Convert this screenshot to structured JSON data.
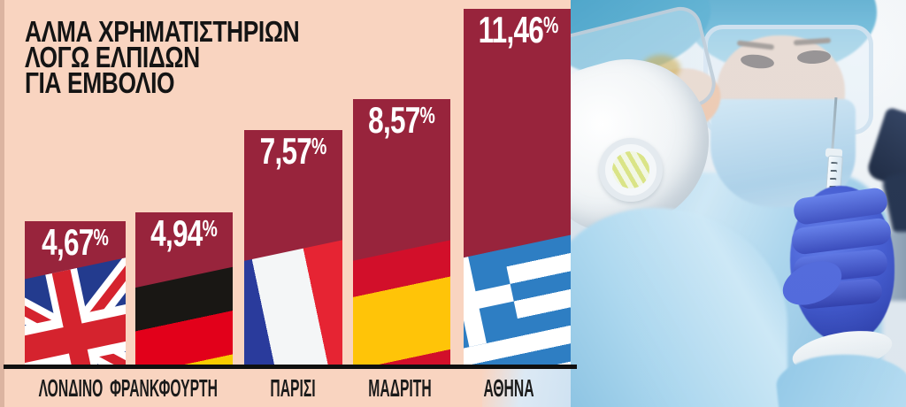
{
  "title": {
    "lines": [
      "ΑΛΜΑ ΧΡΗΜΑΤΙΣΤΗΡΙΩΝ",
      "ΛΟΓΩ ΕΛΠΙΔΩΝ",
      "ΓΙΑ ΕΜΒΟΛΙΟ"
    ]
  },
  "colors": {
    "background": "#f9d4c0",
    "bar": "#98243c",
    "value_text": "#ffffff",
    "title_text": "#141414",
    "axis_line": "#101010",
    "category_text": "#1a1a1a"
  },
  "chart_data": {
    "type": "bar",
    "title": "ΑΛΜΑ ΧΡΗΜΑΤΙΣΤΗΡΙΩΝ ΛΟΓΩ ΕΛΠΙΔΩΝ ΓΙΑ ΕΜΒΟΛΙΟ",
    "categories": [
      "ΛΟΝΔΙΝΟ",
      "ΦΡΑΝΚΦΟΥΡΤΗ",
      "ΠΑΡΙΣΙ",
      "ΜΑΔΡΙΤΗ",
      "ΑΘΗΝΑ"
    ],
    "values": [
      4.67,
      4.94,
      7.57,
      8.57,
      11.46
    ],
    "value_labels": [
      "4,67%",
      "4,94%",
      "7,57%",
      "8,57%",
      "11,46%"
    ],
    "flags": [
      "flag-uk",
      "flag-germany",
      "flag-france",
      "flag-spain",
      "flag-greece"
    ],
    "unit": "%",
    "xlabel": "",
    "ylabel": "",
    "ylim": [
      0,
      11.5
    ],
    "grid": false,
    "legend": false,
    "bar_color": "#98243c"
  }
}
